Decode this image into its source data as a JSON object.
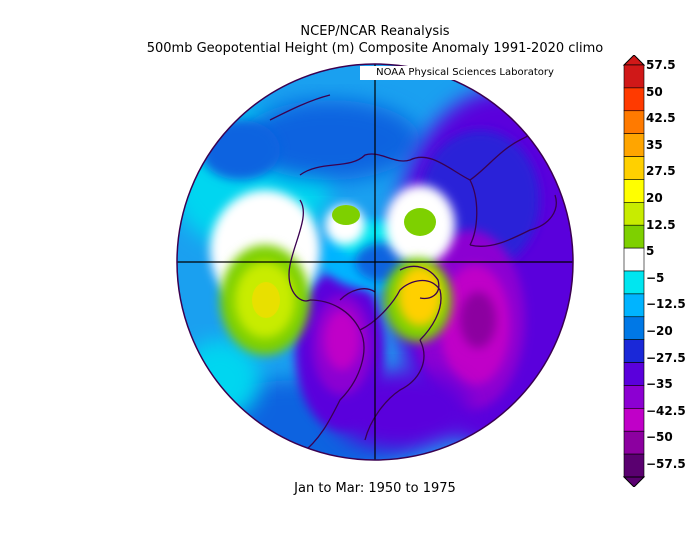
{
  "title_line1": "NCEP/NCAR Reanalysis",
  "title_line2": "500mb Geopotential Height (m) Composite Anomaly 1991-2020 climo",
  "credit": "NOAA Physical Sciences Laboratory",
  "period": "Jan to Mar: 1950 to 1975",
  "colorbar": {
    "labels": [
      "57.5",
      "50",
      "42.5",
      "35",
      "27.5",
      "20",
      "12.5",
      "5",
      "-5",
      "-12.5",
      "-20",
      "-27.5",
      "-35",
      "-42.5",
      "-50",
      "-57.5"
    ],
    "colors": [
      "#d01818",
      "#ff3a00",
      "#ff7a00",
      "#ffa500",
      "#ffd000",
      "#ffff00",
      "#c8ec00",
      "#7ed000",
      "#ffffff",
      "#00e6f0",
      "#00b4ff",
      "#0078e6",
      "#1a28d8",
      "#5a00dc",
      "#8c00d2",
      "#c000c8",
      "#8c00a0",
      "#5a0070"
    ],
    "units": "m",
    "range": [
      -57.5,
      57.5
    ]
  }
}
